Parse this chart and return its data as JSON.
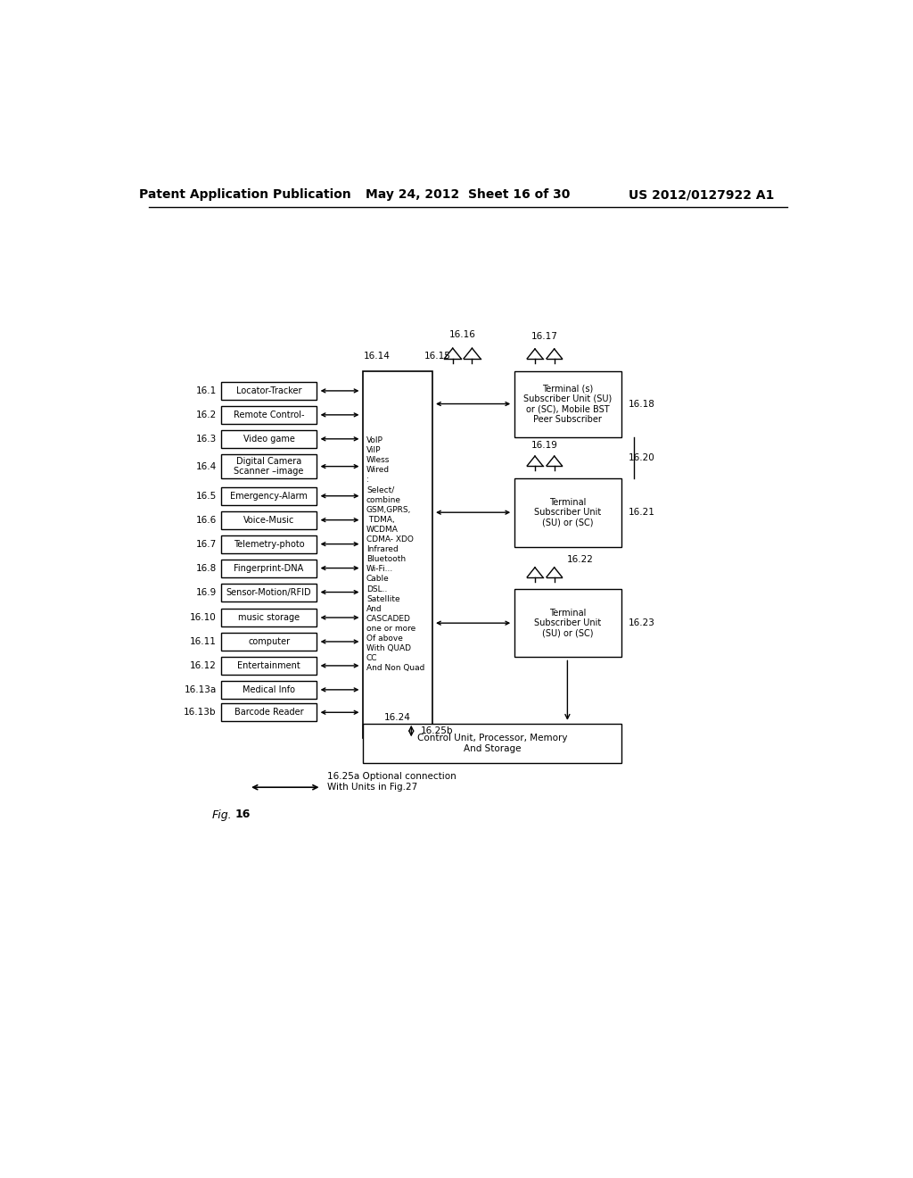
{
  "header_left": "Patent Application Publication",
  "header_mid": "May 24, 2012  Sheet 16 of 30",
  "header_right": "US 2012/0127922 A1",
  "fig_label": "Fig. 16",
  "left_boxes": [
    {
      "label": "16.1",
      "text": "Locator-Tracker"
    },
    {
      "label": "16.2",
      "text": "Remote Control-"
    },
    {
      "label": "16.3",
      "text": "Video game"
    },
    {
      "label": "16.4",
      "text": "Digital Camera\nScanner –image"
    },
    {
      "label": "16.5",
      "text": "Emergency-Alarm"
    },
    {
      "label": "16.6",
      "text": "Voice-Music"
    },
    {
      "label": "16.7",
      "text": "Telemetry-photo"
    },
    {
      "label": "16.8",
      "text": "Fingerprint-DNA"
    },
    {
      "label": "16.9",
      "text": "Sensor-Motion/RFID"
    },
    {
      "label": "16.10",
      "text": "music storage"
    },
    {
      "label": "16.11",
      "text": "computer"
    },
    {
      "label": "16.12",
      "text": "Entertainment"
    },
    {
      "label": "16.13a",
      "text": "Medical Info"
    },
    {
      "label": "16.13b",
      "text": "Barcode Reader"
    }
  ],
  "center_text": "VoIP\nViIP\nWless\nWired\n:\nSelect/\ncombine\nGSM,GPRS,\n TDMA,\nWCDMA\nCDMA- XDO\nInfrared\nBluetooth\nWi-Fi...\nCable\nDSL..\nSatellite\nAnd\nCASCADED\none or more\nOf above\nWith QUAD\nCC\nAnd Non Quad",
  "right_top_box_text": "Terminal (s)\nSubscriber Unit (SU)\nor (SC), Mobile BST\nPeer Subscriber",
  "right_mid_box_text": "Terminal\nSubscriber Unit\n(SU) or (SC)",
  "right_bot_box_text": "Terminal\nSubscriber Unit\n(SU) or (SC)",
  "bottom_box_text": "Control Unit, Processor, Memory\nAnd Storage",
  "arrow_label_a": "16.25a Optional connection\nWith Units in Fig.27",
  "bg_color": "#ffffff",
  "line_color": "#000000",
  "text_color": "#000000"
}
